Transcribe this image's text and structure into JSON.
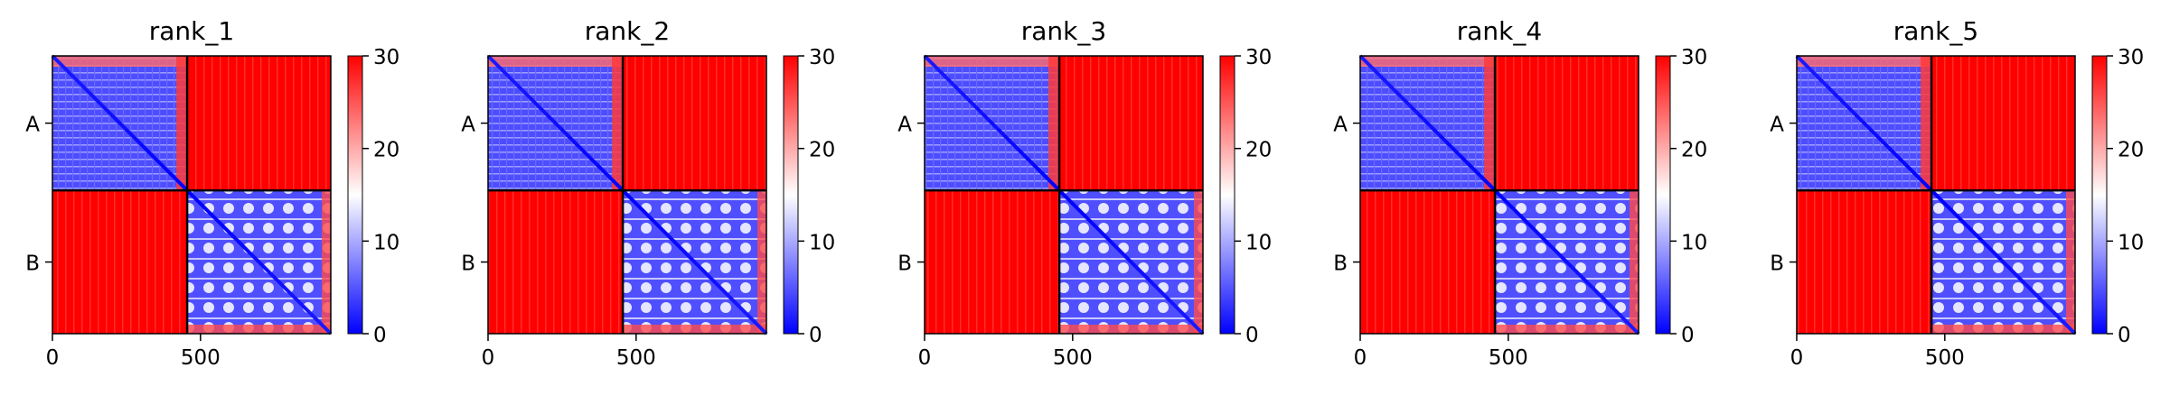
{
  "chart_data": [
    {
      "type": "heatmap",
      "title": "rank_1",
      "chains": [
        "A",
        "B"
      ],
      "chain_boundary": 455,
      "matrix_length": 940,
      "xticks": [
        0,
        500
      ],
      "colorbar": {
        "min": 0,
        "max": 30,
        "ticks": [
          0,
          10,
          20,
          30
        ],
        "colormap": "bwr"
      },
      "cells": {
        "A-A": "low",
        "A-B": "high",
        "B-A": "high",
        "B-B": "low"
      }
    },
    {
      "type": "heatmap",
      "title": "rank_2",
      "chains": [
        "A",
        "B"
      ],
      "chain_boundary": 455,
      "matrix_length": 940,
      "xticks": [
        0,
        500
      ],
      "colorbar": {
        "min": 0,
        "max": 30,
        "ticks": [
          0,
          10,
          20,
          30
        ],
        "colormap": "bwr"
      },
      "cells": {
        "A-A": "low",
        "A-B": "high",
        "B-A": "high",
        "B-B": "low"
      }
    },
    {
      "type": "heatmap",
      "title": "rank_3",
      "chains": [
        "A",
        "B"
      ],
      "chain_boundary": 455,
      "matrix_length": 940,
      "xticks": [
        0,
        500
      ],
      "colorbar": {
        "min": 0,
        "max": 30,
        "ticks": [
          0,
          10,
          20,
          30
        ],
        "colormap": "bwr"
      },
      "cells": {
        "A-A": "low",
        "A-B": "high",
        "B-A": "high",
        "B-B": "low"
      }
    },
    {
      "type": "heatmap",
      "title": "rank_4",
      "chains": [
        "A",
        "B"
      ],
      "chain_boundary": 455,
      "matrix_length": 940,
      "xticks": [
        0,
        500
      ],
      "colorbar": {
        "min": 0,
        "max": 30,
        "ticks": [
          0,
          10,
          20,
          30
        ],
        "colormap": "bwr"
      },
      "cells": {
        "A-A": "low",
        "A-B": "high",
        "B-A": "high",
        "B-B": "low"
      }
    },
    {
      "type": "heatmap",
      "title": "rank_5",
      "chains": [
        "A",
        "B"
      ],
      "chain_boundary": 455,
      "matrix_length": 940,
      "xticks": [
        0,
        500
      ],
      "colorbar": {
        "min": 0,
        "max": 30,
        "ticks": [
          0,
          10,
          20,
          30
        ],
        "colormap": "bwr"
      },
      "cells": {
        "A-A": "low",
        "A-B": "high",
        "B-A": "high",
        "B-B": "low"
      }
    }
  ]
}
